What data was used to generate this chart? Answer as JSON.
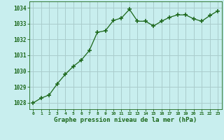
{
  "x": [
    0,
    1,
    2,
    3,
    4,
    5,
    6,
    7,
    8,
    9,
    10,
    11,
    12,
    13,
    14,
    15,
    16,
    17,
    18,
    19,
    20,
    21,
    22,
    23
  ],
  "y": [
    1028.0,
    1028.3,
    1028.5,
    1029.2,
    1029.8,
    1030.3,
    1030.7,
    1031.3,
    1032.45,
    1032.55,
    1033.2,
    1033.35,
    1033.9,
    1033.15,
    1033.15,
    1032.85,
    1033.15,
    1033.4,
    1033.55,
    1033.55,
    1033.3,
    1033.15,
    1033.5,
    1033.8
  ],
  "line_color": "#1a6618",
  "marker": "+",
  "marker_size": 4,
  "bg_color": "#c8eeee",
  "grid_color": "#aacccc",
  "xlabel": "Graphe pression niveau de la mer (hPa)",
  "xlabel_color": "#1a6618",
  "tick_color": "#1a6618",
  "ylim_min": 1027.6,
  "ylim_max": 1034.4,
  "xlim_min": -0.5,
  "xlim_max": 23.5,
  "yticks": [
    1028,
    1029,
    1030,
    1031,
    1032,
    1033,
    1034
  ],
  "xtick_labels": [
    "0",
    "1",
    "2",
    "3",
    "4",
    "5",
    "6",
    "7",
    "8",
    "9",
    "10",
    "11",
    "12",
    "13",
    "14",
    "15",
    "16",
    "17",
    "18",
    "19",
    "20",
    "21",
    "22",
    "23"
  ]
}
